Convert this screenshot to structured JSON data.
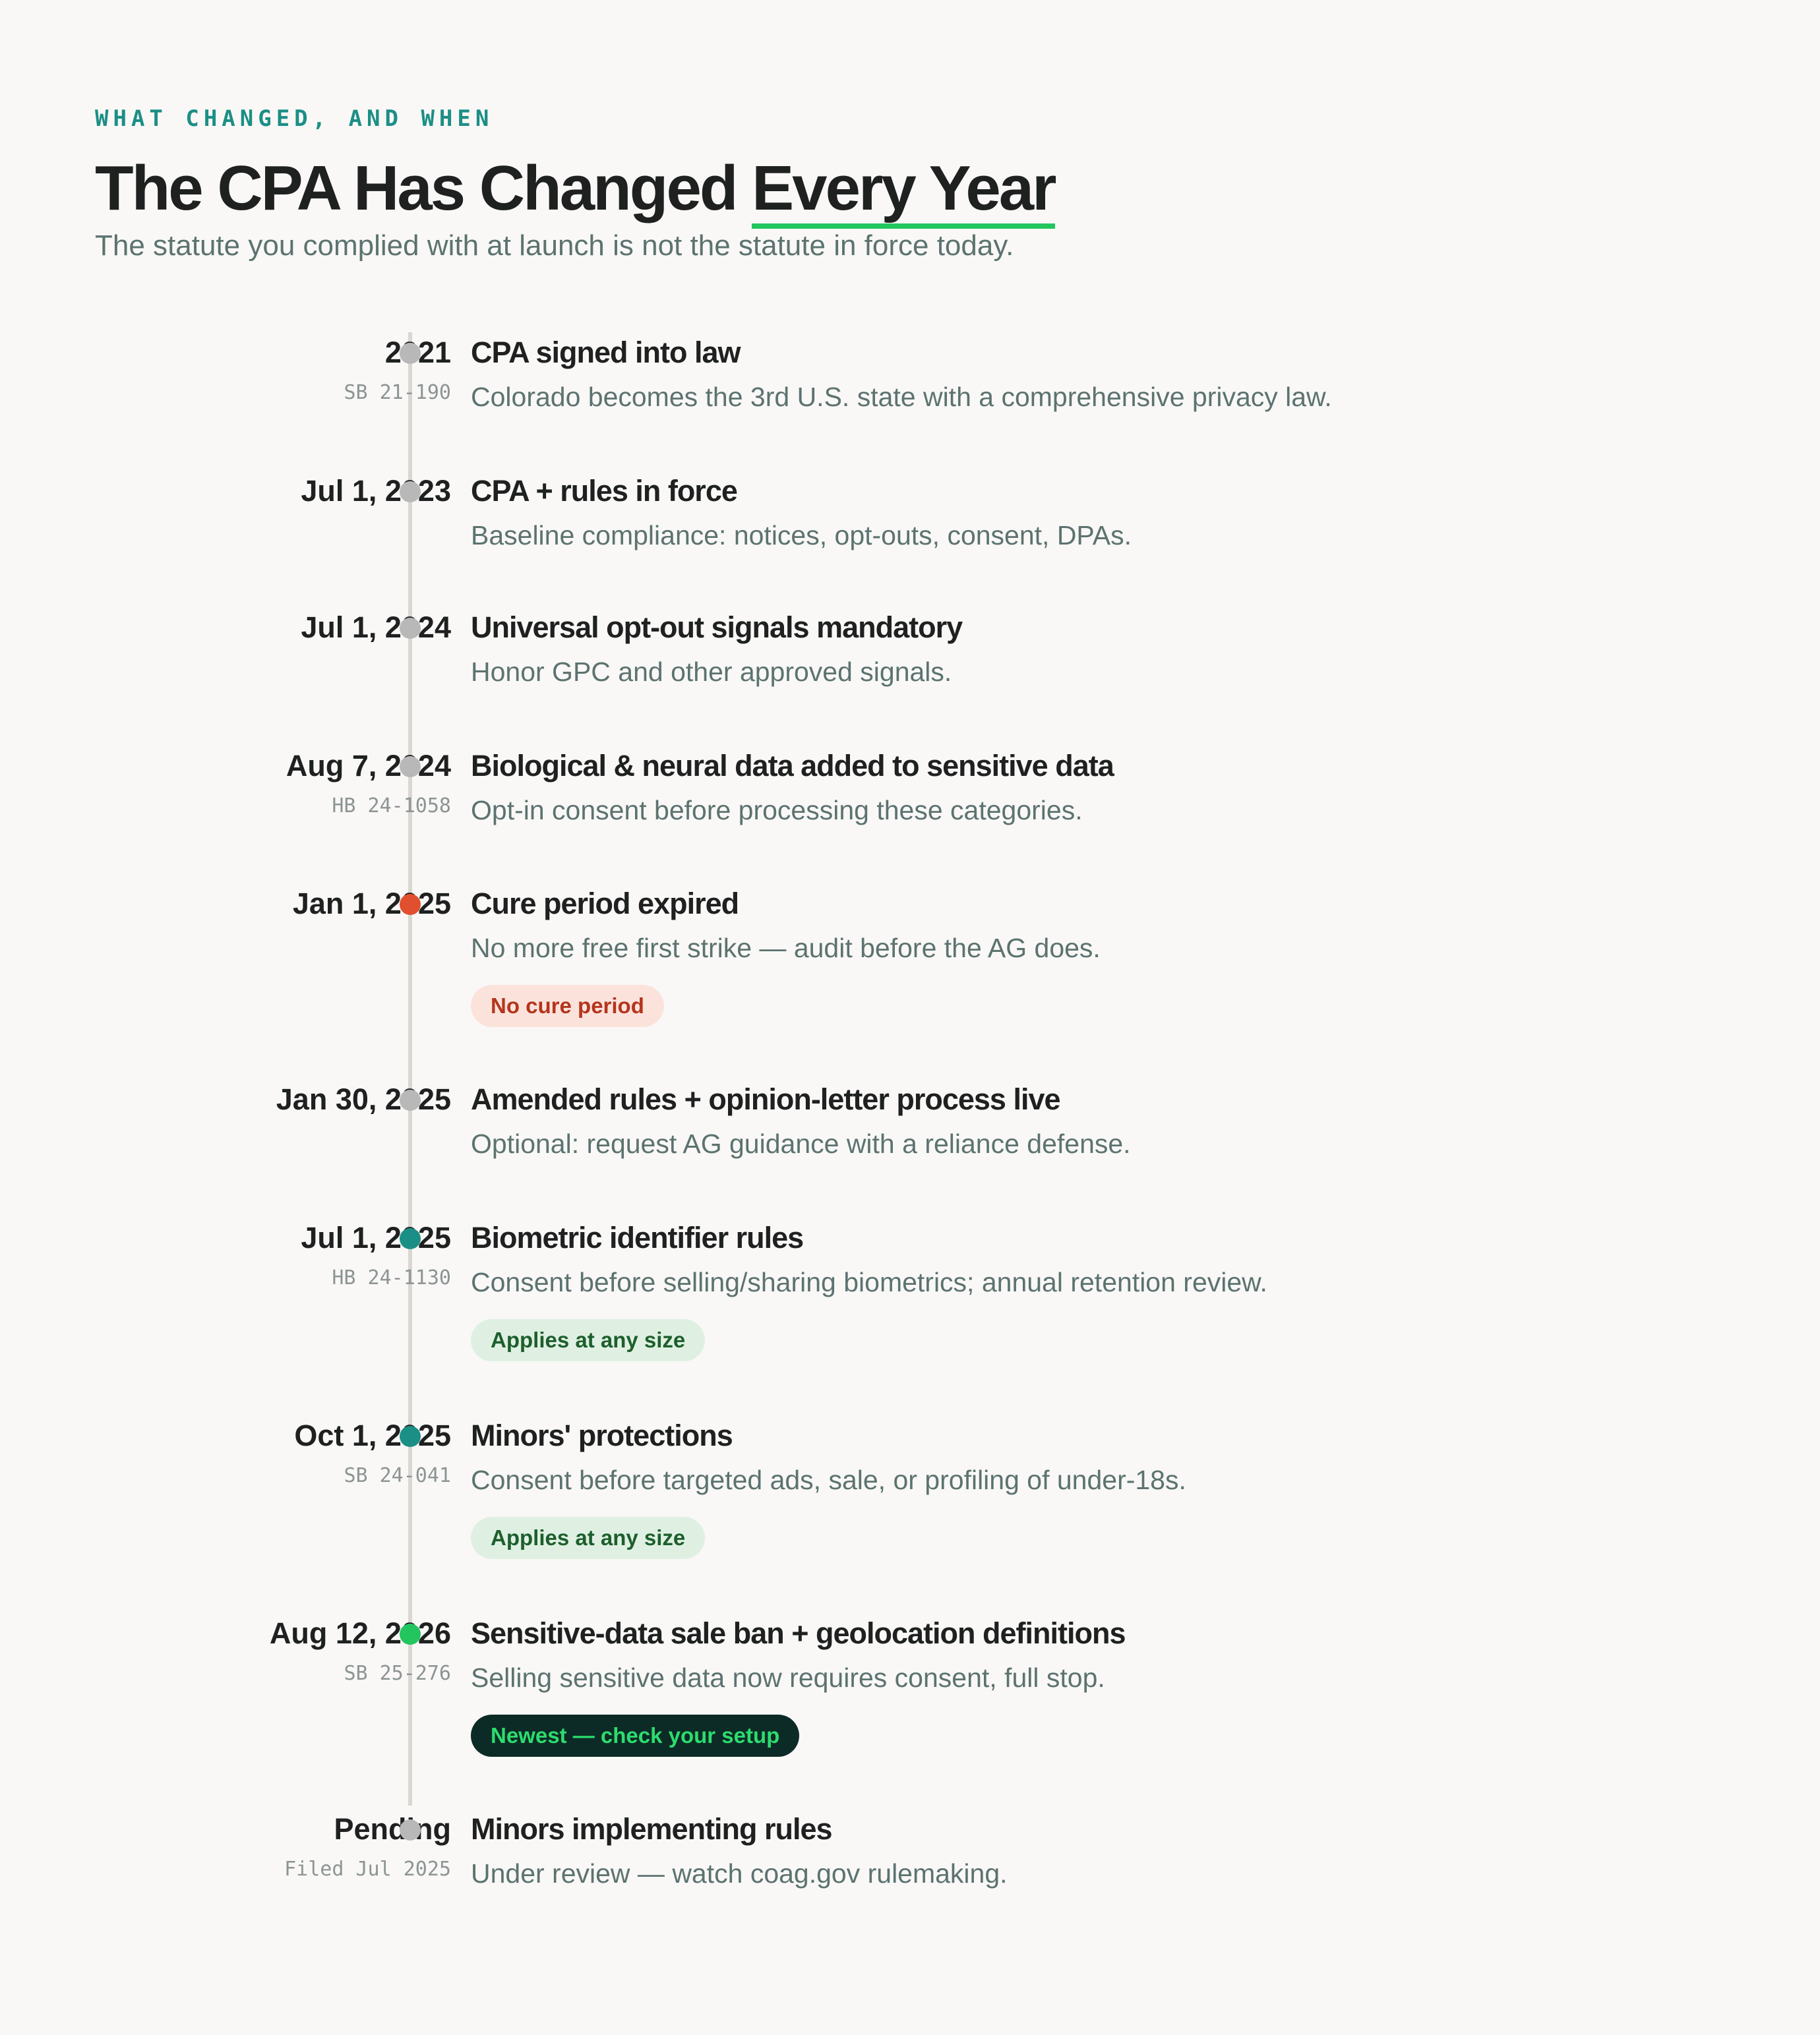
{
  "header": {
    "eyebrow": "WHAT CHANGED, AND WHEN",
    "title_main": "The CPA Has Changed ",
    "title_accent": "Every Year",
    "subtitle": "The statute you complied with at launch is not the statute in force today."
  },
  "colors": {
    "background": "#f9f8f6",
    "spine": "#dad7d1",
    "dot_default": "#b8b8b8",
    "dot_red": "#e04f2e",
    "dot_teal": "#1b8f86",
    "dot_green": "#22c55e",
    "accent_underline": "#22c55e"
  },
  "timeline": [
    {
      "date": "2021",
      "ref": "SB 21-190",
      "title": "CPA signed into law",
      "description": "Colorado becomes the 3rd U.S. state with a comprehensive privacy law.",
      "dot_color": "#b8b8b8"
    },
    {
      "date": "Jul 1, 2023",
      "title": "CPA + rules in force",
      "description": "Baseline compliance: notices, opt-outs, consent, DPAs.",
      "dot_color": "#b8b8b8"
    },
    {
      "date": "Jul 1, 2024",
      "title": "Universal opt-out signals mandatory",
      "description": "Honor GPC and other approved signals.",
      "dot_color": "#b8b8b8"
    },
    {
      "date": "Aug 7, 2024",
      "ref": "HB 24-1058",
      "title": "Biological & neural data added to sensitive data",
      "description": "Opt-in consent before processing these categories.",
      "dot_color": "#b8b8b8"
    },
    {
      "date": "Jan 1, 2025",
      "title": "Cure period expired",
      "description": "No more free first strike — audit before the AG does.",
      "dot_color": "#e04f2e",
      "badge": {
        "label": "No cure period",
        "bg": "#fbe3dc",
        "fg": "#b5351d"
      }
    },
    {
      "date": "Jan 30, 2025",
      "title": "Amended rules + opinion-letter process live",
      "description": "Optional: request AG guidance with a reliance defense.",
      "dot_color": "#b8b8b8"
    },
    {
      "date": "Jul 1, 2025",
      "ref": "HB 24-1130",
      "title": "Biometric identifier rules",
      "description": "Consent before selling/sharing biometrics; annual retention review.",
      "dot_color": "#1b8f86",
      "badge": {
        "label": "Applies at any size",
        "bg": "#dff0e3",
        "fg": "#1d5f2c"
      }
    },
    {
      "date": "Oct 1, 2025",
      "ref": "SB 24-041",
      "title": "Minors' protections",
      "description": "Consent before targeted ads, sale, or profiling of under-18s.",
      "dot_color": "#1b8f86",
      "badge": {
        "label": "Applies at any size",
        "bg": "#dff0e3",
        "fg": "#1d5f2c"
      }
    },
    {
      "date": "Aug 12, 2026",
      "ref": "SB 25-276",
      "title": "Sensitive-data sale ban + geolocation definitions",
      "description": "Selling sensitive data now requires consent, full stop.",
      "dot_color": "#22c55e",
      "badge": {
        "label": "Newest — check your setup",
        "bg": "#0d2b26",
        "fg": "#2ddc6e"
      }
    },
    {
      "date": "Pending",
      "ref": "Filed Jul 2025",
      "title": "Minors implementing rules",
      "description": "Under review — watch coag.gov rulemaking.",
      "dot_color": "#b8b8b8"
    }
  ]
}
